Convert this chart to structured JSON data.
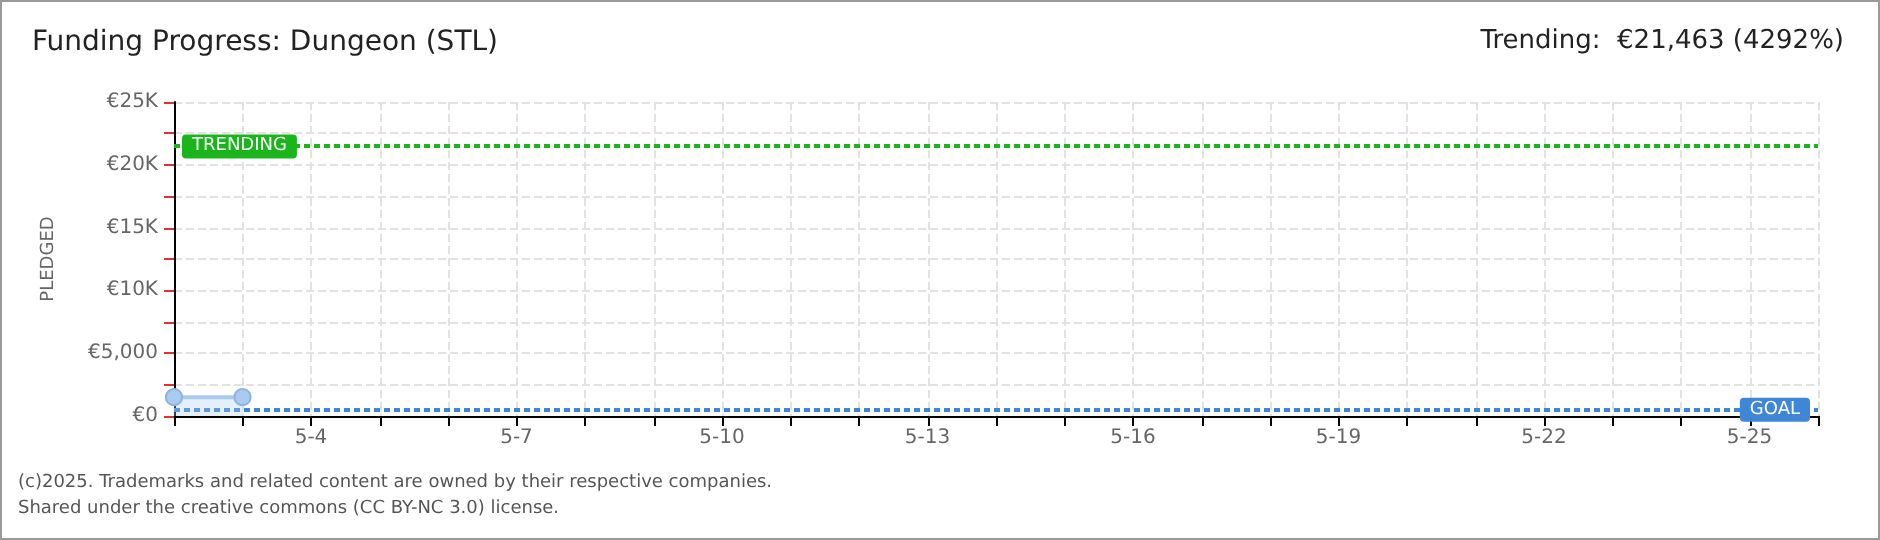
{
  "chart_data": {
    "type": "area",
    "title": "Funding Progress: Dungeon (STL)",
    "subtitle": "Trending:  €21,463 (4292%)",
    "ylabel": "PLEDGED",
    "series": [
      {
        "x": [
          "--05-02",
          "--05-03"
        ],
        "values": [
          1500,
          1500
        ],
        "color": "#a9cbf0"
      }
    ],
    "xlim": [
      "--05-02",
      "--05-26"
    ],
    "xticks": [
      {
        "value": "--05-02",
        "label": null
      },
      {
        "value": "--05-03",
        "label": null
      },
      {
        "value": "--05-04",
        "label": "5-4"
      },
      {
        "value": "--05-05",
        "label": null
      },
      {
        "value": "--05-06",
        "label": null
      },
      {
        "value": "--05-07",
        "label": "5-7"
      },
      {
        "value": "--05-08",
        "label": null
      },
      {
        "value": "--05-09",
        "label": null
      },
      {
        "value": "--05-10",
        "label": "5-10"
      },
      {
        "value": "--05-11",
        "label": null
      },
      {
        "value": "--05-12",
        "label": null
      },
      {
        "value": "--05-13",
        "label": "5-13"
      },
      {
        "value": "--05-14",
        "label": null
      },
      {
        "value": "--05-15",
        "label": null
      },
      {
        "value": "--05-16",
        "label": "5-16"
      },
      {
        "value": "--05-17",
        "label": null
      },
      {
        "value": "--05-18",
        "label": null
      },
      {
        "value": "--05-19",
        "label": "5-19"
      },
      {
        "value": "--05-20",
        "label": null
      },
      {
        "value": "--05-21",
        "label": null
      },
      {
        "value": "--05-22",
        "label": "5-22"
      },
      {
        "value": "--05-23",
        "label": null
      },
      {
        "value": "--05-24",
        "label": null
      },
      {
        "value": "--05-25",
        "label": "5-25"
      },
      {
        "value": "--05-26",
        "label": null
      }
    ],
    "ylim": [
      0,
      25000
    ],
    "yticks": [
      {
        "value": 0,
        "label": "€0"
      },
      {
        "value": 2500,
        "label": null
      },
      {
        "value": 5000,
        "label": "€5,000"
      },
      {
        "value": 7500,
        "label": null
      },
      {
        "value": 10000,
        "label": "€10K"
      },
      {
        "value": 12500,
        "label": null
      },
      {
        "value": 15000,
        "label": "€15K"
      },
      {
        "value": 17500,
        "label": null
      },
      {
        "value": 20000,
        "label": "€20K"
      },
      {
        "value": 22500,
        "label": null
      },
      {
        "value": 25000,
        "label": "€25K"
      }
    ],
    "ref_lines": [
      {
        "axis": "y",
        "value": 21463,
        "label": "TRENDING",
        "color": "#1ab51a",
        "line_style": "dotted"
      },
      {
        "axis": "y",
        "value": 500,
        "label": "GOAL",
        "color": "#3f86d6",
        "line_style": "dotted"
      }
    ],
    "annotations": [
      "(c)2025. Trademarks and related content are owned by their respective companies.",
      "Shared under the creative commons (CC BY-NC 3.0) license."
    ],
    "grid": true,
    "marker": "circle",
    "line_style": "solid"
  }
}
